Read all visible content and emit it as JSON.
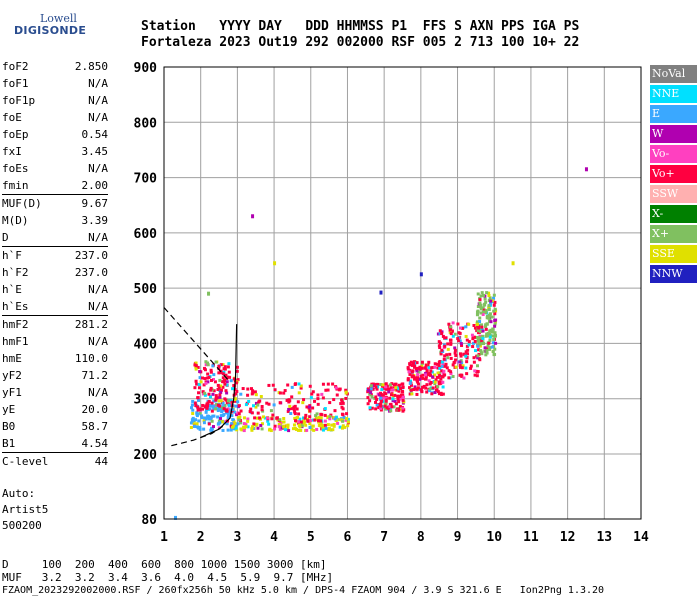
{
  "logo": {
    "line1": "Lowell",
    "line2": "DIGISONDE"
  },
  "header": {
    "line1": "Station   YYYY DAY   DDD HHMMSS P1  FFS S AXN PPS IGA PS",
    "line2": "Fortaleza 2023 Out19 292 002000 RSF 005 2 713 100 10+ 22"
  },
  "params": {
    "group1": [
      {
        "k": "foF2",
        "v": "2.850"
      },
      {
        "k": "foF1",
        "v": "N/A"
      },
      {
        "k": "foF1p",
        "v": "N/A"
      },
      {
        "k": "foE",
        "v": "N/A"
      },
      {
        "k": "foEp",
        "v": "0.54"
      },
      {
        "k": "fxI",
        "v": "3.45"
      },
      {
        "k": "foEs",
        "v": "N/A"
      },
      {
        "k": "fmin",
        "v": "2.00"
      }
    ],
    "group2": [
      {
        "k": "MUF(D)",
        "v": "9.67"
      },
      {
        "k": "M(D)",
        "v": "3.39"
      },
      {
        "k": "D",
        "v": "N/A"
      }
    ],
    "group3": [
      {
        "k": "h`F",
        "v": "237.0"
      },
      {
        "k": "h`F2",
        "v": "237.0"
      },
      {
        "k": "h`E",
        "v": "N/A"
      },
      {
        "k": "h`Es",
        "v": "N/A"
      }
    ],
    "group4": [
      {
        "k": "hmF2",
        "v": "281.2"
      },
      {
        "k": "hmF1",
        "v": "N/A"
      },
      {
        "k": "hmE",
        "v": "110.0"
      },
      {
        "k": "yF2",
        "v": "71.2"
      },
      {
        "k": "yF1",
        "v": "N/A"
      },
      {
        "k": "yE",
        "v": "20.0"
      },
      {
        "k": "B0",
        "v": "58.7"
      },
      {
        "k": "B1",
        "v": "4.54"
      }
    ],
    "group5": [
      {
        "k": "C-level",
        "v": "44"
      }
    ]
  },
  "auto": {
    "line1": "Auto:",
    "line2": "Artist5",
    "line3": "500200"
  },
  "legend": [
    {
      "label": "NoVal",
      "color": "#808080"
    },
    {
      "label": "NNE",
      "color": "#00e0ff"
    },
    {
      "label": "E",
      "color": "#3aa8ff"
    },
    {
      "label": "W",
      "color": "#b000b0"
    },
    {
      "label": "Vo-",
      "color": "#ff40c0"
    },
    {
      "label": "Vo+",
      "color": "#ff0040"
    },
    {
      "label": "SSW",
      "color": "#ffb0b0"
    },
    {
      "label": "X-",
      "color": "#008000"
    },
    {
      "label": "X+",
      "color": "#80c060"
    },
    {
      "label": "SSE",
      "color": "#e0e000"
    },
    {
      "label": "NNW",
      "color": "#2020c0"
    }
  ],
  "footer": {
    "line1": "D     100  200  400  600  800 1000 1500 3000 [km]",
    "line2": "MUF   3.2  3.2  3.4  3.6  4.0  4.5  5.9  9.7 [MHz]",
    "line3": "FZAOM_2023292002000.RSF / 260fx256h 50 kHz 5.0 km / DPS-4 FZAOM 904 / 3.9 S 321.6 E   Ion2Png 1.3.20"
  },
  "chart_data": {
    "type": "scatter",
    "title": "",
    "xlabel": "",
    "ylabel": "",
    "xlim": [
      1,
      14
    ],
    "ylim": [
      80,
      900
    ],
    "xticks": [
      1,
      2,
      3,
      4,
      5,
      6,
      7,
      8,
      9,
      10,
      11,
      12,
      13,
      14
    ],
    "yticks": [
      80,
      200,
      300,
      400,
      500,
      600,
      700,
      800,
      900
    ],
    "grid": true,
    "clusters": [
      {
        "x_range": [
          1.7,
          3.0
        ],
        "h_range": [
          245,
          300
        ],
        "series": "E"
      },
      {
        "x_range": [
          1.8,
          3.0
        ],
        "h_range": [
          280,
          370
        ],
        "series": "Vo+"
      },
      {
        "x_range": [
          2.8,
          6.0
        ],
        "h_range": [
          245,
          270
        ],
        "series": "SSE"
      },
      {
        "x_range": [
          3.0,
          6.0
        ],
        "h_range": [
          260,
          330
        ],
        "series": "Vo+"
      },
      {
        "x_range": [
          6.5,
          7.5
        ],
        "h_range": [
          280,
          330
        ],
        "series": "Vo+"
      },
      {
        "x_range": [
          7.6,
          8.6
        ],
        "h_range": [
          310,
          370
        ],
        "series": "Vo+"
      },
      {
        "x_range": [
          8.4,
          9.6
        ],
        "h_range": [
          340,
          440
        ],
        "series": "Vo+"
      },
      {
        "x_range": [
          9.5,
          10.0
        ],
        "h_range": [
          380,
          495
        ],
        "series": "X+"
      }
    ],
    "isolated_points": [
      {
        "x": 12.5,
        "h": 715,
        "series": "W"
      },
      {
        "x": 1.3,
        "h": 82,
        "series": "E"
      },
      {
        "x": 8.0,
        "h": 525,
        "series": "NNW"
      },
      {
        "x": 6.9,
        "h": 492,
        "series": "NNW"
      },
      {
        "x": 3.4,
        "h": 630,
        "series": "W"
      },
      {
        "x": 4.0,
        "h": 545,
        "series": "SSE"
      },
      {
        "x": 10.5,
        "h": 545,
        "series": "SSE"
      },
      {
        "x": 2.2,
        "h": 490,
        "series": "X+"
      }
    ],
    "profile_dashed": [
      [
        1.0,
        465
      ],
      [
        1.6,
        420
      ],
      [
        2.2,
        375
      ],
      [
        2.8,
        330
      ]
    ],
    "trace_dashed": [
      [
        1.2,
        215
      ],
      [
        1.8,
        225
      ],
      [
        2.3,
        237
      ],
      [
        2.6,
        250
      ]
    ],
    "profile_solid": [
      [
        2.0,
        230
      ],
      [
        2.5,
        245
      ],
      [
        2.8,
        265
      ],
      [
        2.9,
        300
      ],
      [
        2.95,
        340
      ],
      [
        2.98,
        435
      ]
    ]
  }
}
